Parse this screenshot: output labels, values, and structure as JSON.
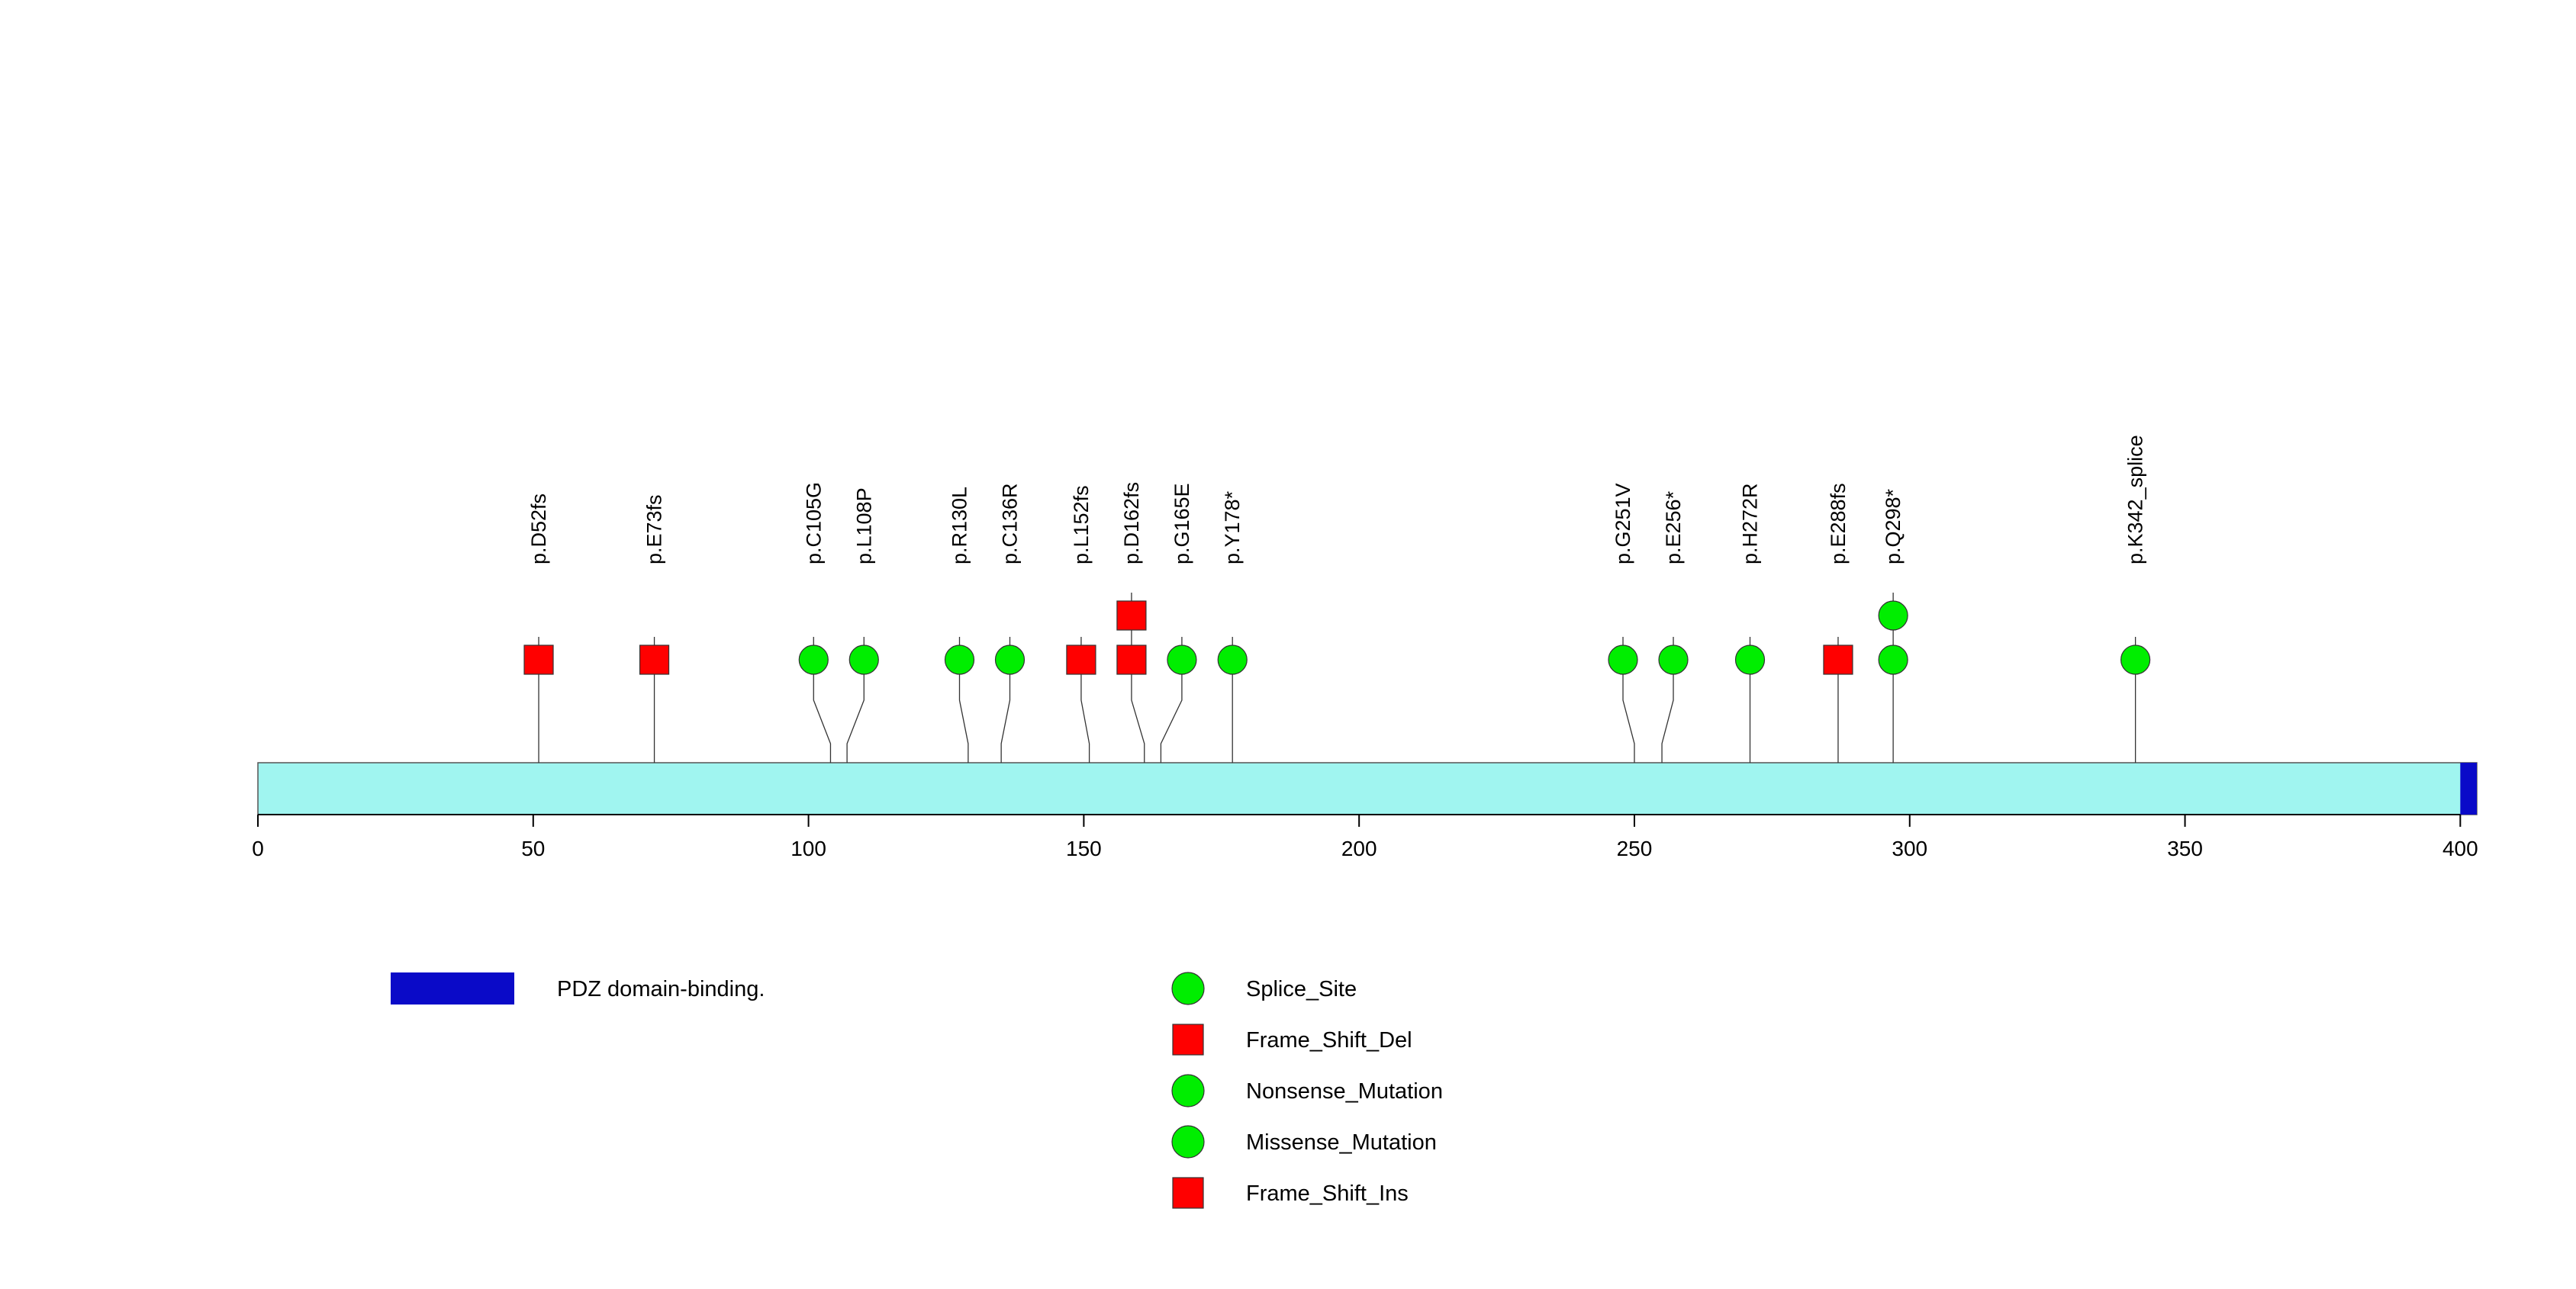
{
  "chart_data": {
    "type": "lollipop",
    "protein_length": 403,
    "axis": {
      "xlim": [
        0,
        403
      ],
      "ticks": [
        0,
        50,
        100,
        150,
        200,
        250,
        300,
        350,
        400
      ]
    },
    "domains": [
      {
        "name": "PDZ domain-binding.",
        "start": 400,
        "end": 403,
        "color": "#0a0ac8"
      }
    ],
    "backbone_color": "#a0f5f0",
    "mutations": [
      {
        "label": "p.D52fs",
        "pos": 51,
        "count": 1,
        "shapes": [
          "square"
        ]
      },
      {
        "label": "p.E73fs",
        "pos": 72,
        "count": 1,
        "shapes": [
          "square"
        ]
      },
      {
        "label": "p.C105G",
        "pos": 104,
        "count": 1,
        "shapes": [
          "circle"
        ]
      },
      {
        "label": "p.L108P",
        "pos": 107,
        "count": 1,
        "shapes": [
          "circle"
        ]
      },
      {
        "label": "p.R130L",
        "pos": 129,
        "count": 1,
        "shapes": [
          "circle"
        ]
      },
      {
        "label": "p.C136R",
        "pos": 135,
        "count": 1,
        "shapes": [
          "circle"
        ]
      },
      {
        "label": "p.L152fs",
        "pos": 151,
        "count": 1,
        "shapes": [
          "square"
        ]
      },
      {
        "label": "p.D162fs",
        "pos": 161,
        "count": 2,
        "shapes": [
          "square",
          "square"
        ]
      },
      {
        "label": "p.G165E",
        "pos": 164,
        "count": 1,
        "shapes": [
          "circle"
        ]
      },
      {
        "label": "p.Y178*",
        "pos": 177,
        "count": 1,
        "shapes": [
          "circle"
        ]
      },
      {
        "label": "p.G251V",
        "pos": 250,
        "count": 1,
        "shapes": [
          "circle"
        ]
      },
      {
        "label": "p.E256*",
        "pos": 255,
        "count": 1,
        "shapes": [
          "circle"
        ]
      },
      {
        "label": "p.H272R",
        "pos": 271,
        "count": 1,
        "shapes": [
          "circle"
        ]
      },
      {
        "label": "p.E288fs",
        "pos": 287,
        "count": 1,
        "shapes": [
          "square"
        ]
      },
      {
        "label": "p.Q298*",
        "pos": 297,
        "count": 2,
        "shapes": [
          "circle",
          "circle"
        ]
      },
      {
        "label": "p.K342_splice",
        "pos": 341,
        "count": 1,
        "shapes": [
          "circle"
        ]
      }
    ],
    "legend": {
      "domain": {
        "label": "PDZ domain-binding.",
        "color": "#0a0ac8"
      },
      "types": [
        {
          "label": "Splice_Site",
          "shape": "circle",
          "color": "#00ee00"
        },
        {
          "label": "Frame_Shift_Del",
          "shape": "square",
          "color": "#ff0000"
        },
        {
          "label": "Nonsense_Mutation",
          "shape": "circle",
          "color": "#00ee00"
        },
        {
          "label": "Missense_Mutation",
          "shape": "circle",
          "color": "#00ee00"
        },
        {
          "label": "Frame_Shift_Ins",
          "shape": "square",
          "color": "#ff0000"
        }
      ]
    }
  },
  "colors": {
    "circle": "#00ee00",
    "square": "#ff0000"
  }
}
